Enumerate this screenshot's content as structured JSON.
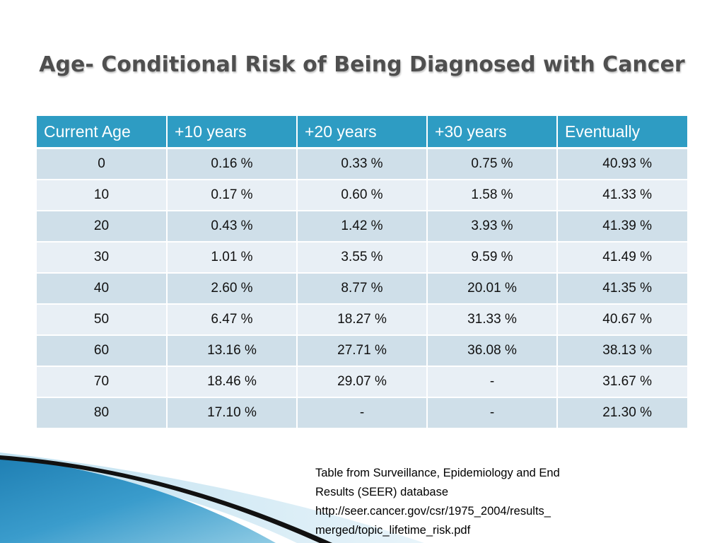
{
  "slide": {
    "title": "Age- Conditional Risk of Being Diagnosed with Cancer"
  },
  "table": {
    "headers": [
      "Current Age",
      "+10 years",
      "+20 years",
      "+30 years",
      "Eventually"
    ],
    "rows": [
      [
        "0",
        "0.16 %",
        "0.33 %",
        "0.75 %",
        "40.93 %"
      ],
      [
        "10",
        "0.17 %",
        "0.60 %",
        "1.58 %",
        "41.33 %"
      ],
      [
        "20",
        "0.43 %",
        "1.42 %",
        "3.93 %",
        "41.39 %"
      ],
      [
        "30",
        "1.01 %",
        "3.55 %",
        "9.59 %",
        "41.49 %"
      ],
      [
        "40",
        "2.60 %",
        "8.77 %",
        "20.01 %",
        "41.35 %"
      ],
      [
        "50",
        "6.47 %",
        "18.27 %",
        "31.33 %",
        "40.67 %"
      ],
      [
        "60",
        "13.16 %",
        "27.71 %",
        "36.08 %",
        "38.13 %"
      ],
      [
        "70",
        "18.46 %",
        "29.07 %",
        "-",
        "31.67 %"
      ],
      [
        "80",
        "17.10 %",
        "-",
        "-",
        "21.30 %"
      ]
    ]
  },
  "source": {
    "lines": [
      "Table from Surveillance, Epidemiology and End",
      "Results (SEER) database",
      "http://seer.cancer.gov/csr/1975_2004/results_",
      "merged/topic_lifetime_risk.pdf"
    ]
  },
  "colors": {
    "header_bg": "#2e9cc3",
    "row_odd": "#cfdfe9",
    "row_even": "#e8eff5",
    "title_text": "#4f4f4f",
    "wave_blue": "#3a9ccc"
  }
}
